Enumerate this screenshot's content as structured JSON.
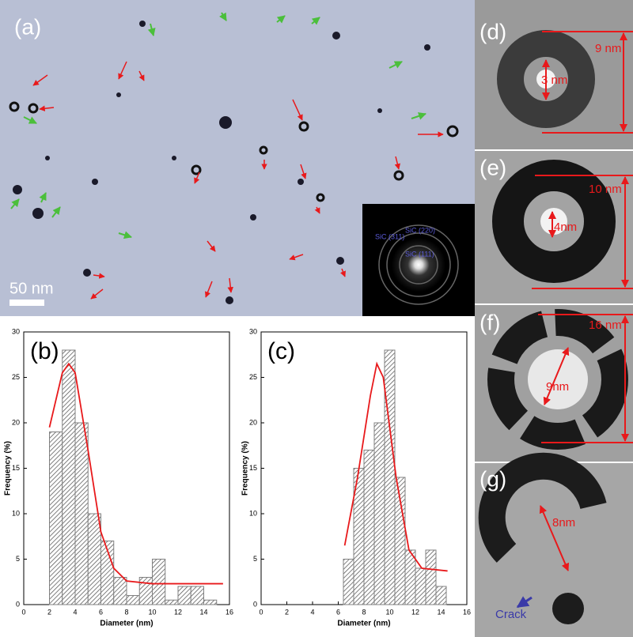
{
  "images": {
    "a": {
      "label": "(a)",
      "scale_bar": "50 nm",
      "inset": [
        "SiC (220)",
        "SiC (311)",
        "SiC (111)"
      ]
    },
    "d": {
      "label": "(d)",
      "outer": "9 nm",
      "inner": "3 nm"
    },
    "e": {
      "label": "(e)",
      "outer": "10 nm",
      "inner": "4nm"
    },
    "f": {
      "label": "(f)",
      "outer": "16 nm",
      "inner": "9nm"
    },
    "g": {
      "label": "(g)",
      "inner": "8nm",
      "note": "Crack"
    }
  },
  "chart_data": [
    {
      "type": "histogram",
      "title": "(b)",
      "xlabel": "Diameter (nm)",
      "ylabel": "Frequency (%)",
      "bins": [
        2,
        3,
        4,
        5,
        6,
        7,
        8,
        9,
        10,
        11,
        12,
        13,
        14,
        15
      ],
      "values": [
        19,
        28,
        20,
        10,
        7,
        3,
        1,
        3,
        5,
        0.5,
        2,
        2,
        0.5
      ],
      "color": "#808080",
      "fit": {
        "x": [
          2,
          3,
          3.5,
          4,
          5,
          6,
          7,
          8,
          10,
          12,
          14,
          15.5
        ],
        "values": [
          19.5,
          25.5,
          26.5,
          25.5,
          17,
          8,
          4,
          2.6,
          2.3,
          2.3,
          2.3,
          2.3
        ],
        "color": "#e8191b"
      },
      "xlim": [
        0,
        16
      ],
      "xticks": [
        0,
        2,
        4,
        6,
        8,
        10,
        12,
        14,
        16
      ],
      "ylim": [
        0,
        30
      ],
      "yticks": [
        0,
        5,
        10,
        15,
        20,
        25,
        30
      ]
    },
    {
      "type": "histogram",
      "title": "(c)",
      "xlabel": "Diameter (nm)",
      "ylabel": "Frequency (%)",
      "bins": [
        6.4,
        7.2,
        8.0,
        8.8,
        9.6,
        10.4,
        11.2,
        12.0,
        12.8,
        13.6,
        14.4
      ],
      "values": [
        5,
        15,
        17,
        20,
        28,
        14,
        6,
        4,
        6,
        2
      ],
      "color": "#808080",
      "fit": {
        "x": [
          6.5,
          7.5,
          8.5,
          9,
          9.5,
          10.5,
          11.5,
          12.5,
          14.5
        ],
        "values": [
          6.5,
          14,
          23,
          26.5,
          25,
          14,
          6,
          4,
          3.7
        ],
        "color": "#e8191b"
      },
      "xlim": [
        0,
        16
      ],
      "xticks": [
        0,
        2,
        4,
        6,
        8,
        10,
        12,
        14,
        16
      ],
      "ylim": [
        0,
        30
      ],
      "yticks": [
        0,
        5,
        10,
        15,
        20,
        25,
        30
      ]
    }
  ]
}
